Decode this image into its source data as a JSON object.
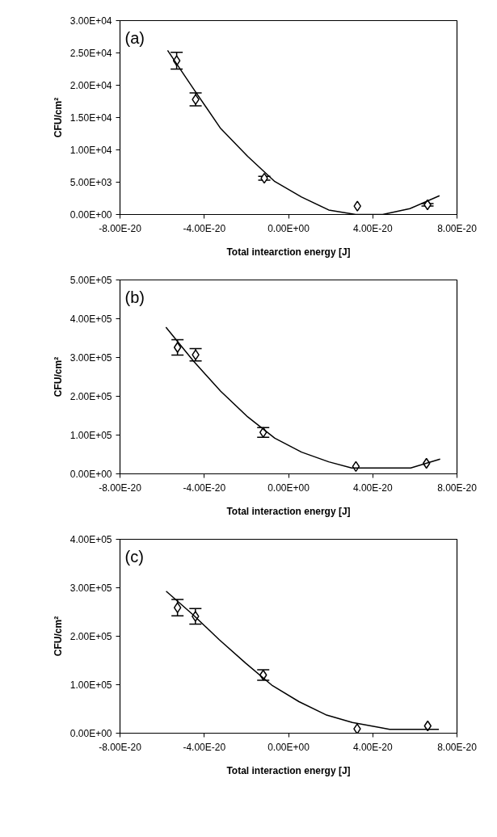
{
  "chart_data": [
    {
      "type": "scatter",
      "xlabel": "Total intearction energy [J]",
      "ylabel": "CFU/cm²",
      "annotations": [
        "(a)"
      ],
      "xlim": [
        -8e-20,
        8e-20
      ],
      "xticks": [
        {
          "value": -8e-20,
          "label": "-8.00E-20"
        },
        {
          "value": -4e-20,
          "label": "-4.00E-20"
        },
        {
          "value": 0,
          "label": "0.00E+00"
        },
        {
          "value": 4e-20,
          "label": "4.00E-20"
        },
        {
          "value": 8e-20,
          "label": "8.00E-20"
        }
      ],
      "ylim": [
        0,
        30000
      ],
      "yticks": [
        {
          "value": 0,
          "label": "0.00E+00"
        },
        {
          "value": 5000,
          "label": "5.00E+03"
        },
        {
          "value": 10000,
          "label": "1.00E+04"
        },
        {
          "value": 15000,
          "label": "1.50E+04"
        },
        {
          "value": 20000,
          "label": "2.00E+04"
        },
        {
          "value": 25000,
          "label": "2.50E+04"
        },
        {
          "value": 30000,
          "label": "3.00E+04"
        }
      ],
      "series": [
        {
          "marker": "diamond",
          "color": "#000000",
          "x": [
            -5.31e-20,
            -4.41e-20,
            -1.15e-20,
            3.27e-20,
            6.6e-20
          ],
          "values": [
            23800,
            17800,
            5600,
            1300,
            1500
          ],
          "errors": [
            1300,
            1000,
            300,
            null,
            200
          ]
        },
        {
          "type": "line",
          "marker": "none",
          "color": "#000000",
          "x": [
            -5.74e-20,
            -4.5e-20,
            -3.22e-20,
            -1.94e-20,
            -6.5e-21,
            6.2e-21,
            1.91e-20,
            3.19e-20,
            4.47e-20,
            5.76e-20,
            7.17e-20
          ],
          "values": [
            25400,
            19400,
            13300,
            9000,
            5100,
            2700,
            700,
            0,
            0,
            900,
            2900
          ]
        }
      ]
    },
    {
      "type": "scatter",
      "xlabel": "Total interaction energy [J]",
      "ylabel": "CFU/cm²",
      "annotations": [
        "(b)"
      ],
      "xlim": [
        -8e-20,
        8e-20
      ],
      "xticks": [
        {
          "value": -8e-20,
          "label": "-8.00E-20"
        },
        {
          "value": -4e-20,
          "label": "-4.00E-20"
        },
        {
          "value": 0,
          "label": "0.00E+00"
        },
        {
          "value": 4e-20,
          "label": "4.00E-20"
        },
        {
          "value": 8e-20,
          "label": "8.00E-20"
        }
      ],
      "ylim": [
        0,
        500000
      ],
      "yticks": [
        {
          "value": 0,
          "label": "0.00E+00"
        },
        {
          "value": 100000,
          "label": "1.00E+05"
        },
        {
          "value": 200000,
          "label": "2.00E+05"
        },
        {
          "value": 300000,
          "label": "3.00E+05"
        },
        {
          "value": 400000,
          "label": "4.00E+05"
        },
        {
          "value": 500000,
          "label": "5.00E+05"
        }
      ],
      "series": [
        {
          "marker": "diamond",
          "color": "#000000",
          "x": [
            -5.27e-20,
            -4.41e-20,
            -1.2e-20,
            3.2e-20,
            6.55e-20
          ],
          "values": [
            326000,
            307000,
            107000,
            19000,
            27000
          ],
          "errors": [
            20000,
            16000,
            12500,
            null,
            null
          ]
        },
        {
          "type": "line",
          "marker": "none",
          "color": "#000000",
          "x": [
            -5.82e-20,
            -4.5e-20,
            -3.22e-20,
            -1.94e-20,
            -6.5e-21,
            6.2e-21,
            1.91e-20,
            3e-20,
            5.8e-20,
            7.2e-20
          ],
          "values": [
            378000,
            290000,
            213000,
            147000,
            92000,
            56000,
            31000,
            15000,
            15000,
            38000
          ]
        }
      ]
    },
    {
      "type": "scatter",
      "xlabel": "Total interaction energy [J]",
      "ylabel": "CFU/cm²",
      "annotations": [
        "(c)"
      ],
      "xlim": [
        -8e-20,
        8e-20
      ],
      "xticks": [
        {
          "value": -8e-20,
          "label": "-8.00E-20"
        },
        {
          "value": -4e-20,
          "label": "-4.00E-20"
        },
        {
          "value": 0,
          "label": "0.00E+00"
        },
        {
          "value": 4e-20,
          "label": "4.00E-20"
        },
        {
          "value": 8e-20,
          "label": "8.00E-20"
        }
      ],
      "ylim": [
        0,
        400000
      ],
      "yticks": [
        {
          "value": 0,
          "label": "0.00E+00"
        },
        {
          "value": 100000,
          "label": "1.00E+05"
        },
        {
          "value": 200000,
          "label": "2.00E+05"
        },
        {
          "value": 300000,
          "label": "3.00E+05"
        },
        {
          "value": 400000,
          "label": "4.00E+05"
        }
      ],
      "series": [
        {
          "marker": "diamond",
          "color": "#000000",
          "x": [
            -5.27e-20,
            -4.42e-20,
            -1.2e-20,
            3.26e-20,
            6.61e-20
          ],
          "values": [
            259000,
            241000,
            120000,
            9000,
            15000
          ],
          "errors": [
            17000,
            16000,
            11000,
            null,
            null
          ]
        },
        {
          "type": "line",
          "marker": "none",
          "color": "#000000",
          "x": [
            -5.81e-20,
            -4.55e-20,
            -3.29e-20,
            -2.02e-20,
            -7.6e-21,
            5e-21,
            1.77e-20,
            3.03e-20,
            4.29e-20,
            4.8e-20,
            7.14e-20
          ],
          "values": [
            293000,
            245000,
            193000,
            144000,
            98000,
            65000,
            38000,
            22000,
            12000,
            8000,
            8000
          ]
        }
      ]
    }
  ]
}
